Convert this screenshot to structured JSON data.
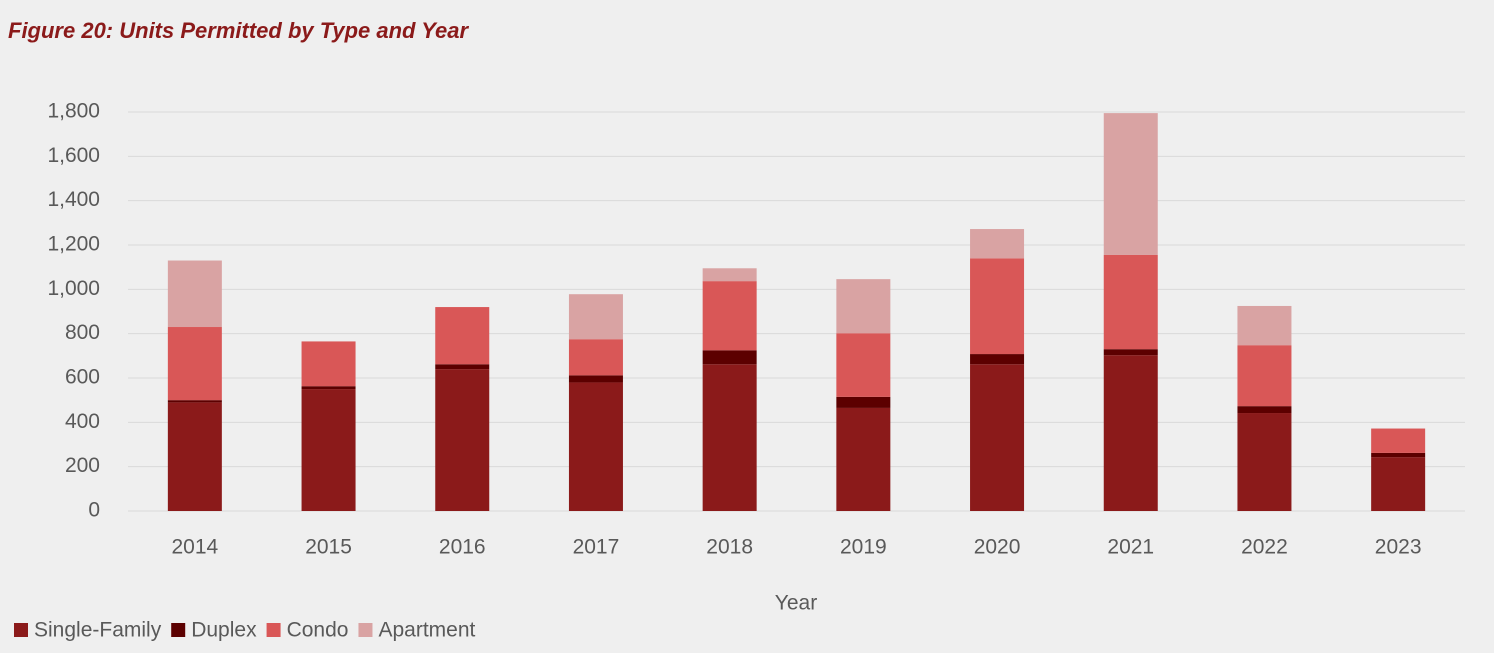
{
  "chart_data": {
    "type": "stacked_bar",
    "title": "Figure 20: Units Permitted by Type and Year",
    "x_label": "Year",
    "categories": [
      "2014",
      "2015",
      "2016",
      "2017",
      "2018",
      "2019",
      "2020",
      "2021",
      "2022",
      "2023"
    ],
    "series": [
      {
        "name": "Single-Family",
        "color": "#8b1a1a",
        "values": [
          490,
          550,
          640,
          580,
          662,
          465,
          662,
          703,
          442,
          243
        ]
      },
      {
        "name": "Duplex",
        "color": "#5c0000",
        "values": [
          10,
          13,
          22,
          32,
          63,
          50,
          46,
          27,
          31,
          19
        ]
      },
      {
        "name": "Condo",
        "color": "#d95757",
        "values": [
          330,
          202,
          258,
          163,
          312,
          287,
          432,
          425,
          275,
          110
        ]
      },
      {
        "name": "Apartment",
        "color": "#d9a3a3",
        "values": [
          300,
          0,
          0,
          203,
          58,
          244,
          132,
          640,
          177,
          0
        ]
      }
    ],
    "ylim": [
      0,
      1800
    ],
    "yticks": [
      0,
      200,
      400,
      600,
      800,
      {
        "value": 1000,
        "label": "1,000"
      },
      {
        "value": 1200,
        "label": "1,200"
      },
      {
        "value": 1400,
        "label": "1,400"
      },
      {
        "value": 1600,
        "label": "1,600"
      },
      {
        "value": 1800,
        "label": "1,800"
      }
    ],
    "grid": true,
    "legend": "bottom-left"
  }
}
